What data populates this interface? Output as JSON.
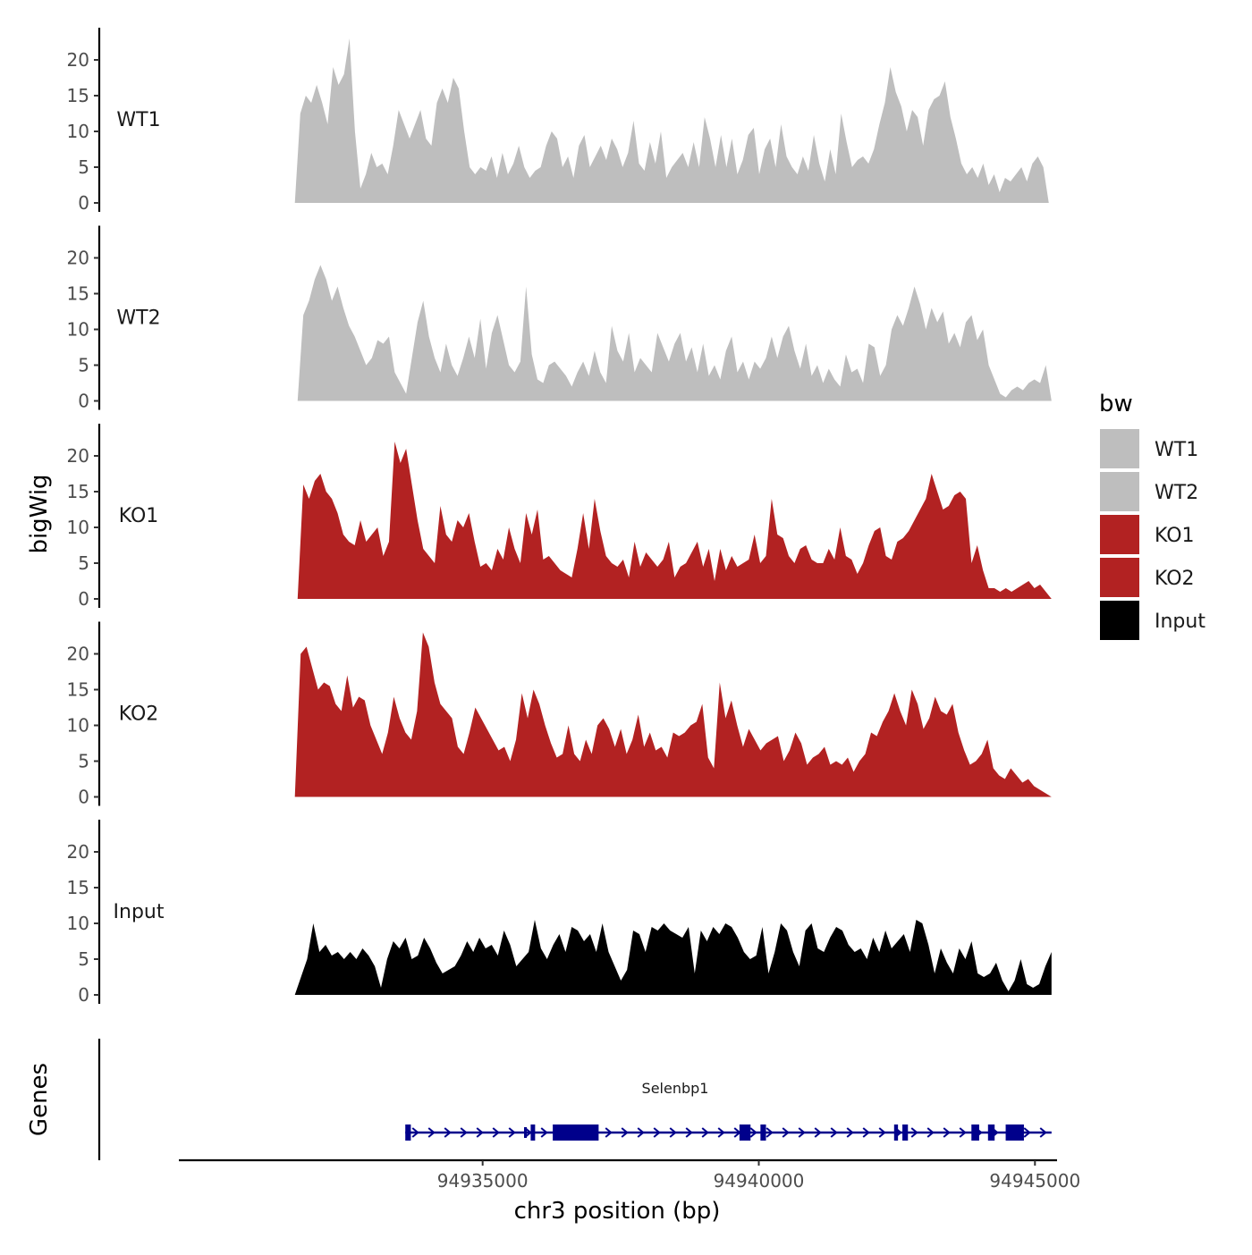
{
  "chart_data": {
    "type": "area",
    "panel_ylabel": "bigWig",
    "gene_panel_label": "Genes",
    "xlabel": "chr3 position (bp)",
    "x_ticks": [
      94935000,
      94940000,
      94945000
    ],
    "x_tick_labels": [
      "94935000",
      "94940000",
      "94945000"
    ],
    "xlim": [
      94929500,
      94945400
    ],
    "ylim": [
      0,
      24
    ],
    "y_ticks": [
      0,
      5,
      10,
      15,
      20
    ],
    "y_tick_labels": [
      "0",
      "5",
      "10",
      "15",
      "20"
    ],
    "legend": {
      "title": "bw",
      "position": "right",
      "entries": [
        {
          "label": "WT1",
          "color": "#bebebe"
        },
        {
          "label": "WT2",
          "color": "#bebebe"
        },
        {
          "label": "KO1",
          "color": "#b22222"
        },
        {
          "label": "KO2",
          "color": "#b22222"
        },
        {
          "label": "Input",
          "color": "#000000"
        }
      ]
    },
    "series": [
      {
        "name": "WT1",
        "color": "#bebebe",
        "x_start": 94931600,
        "x_end": 94945250,
        "values": [
          0,
          12.5,
          15,
          14,
          16.5,
          14,
          11,
          19,
          16.5,
          18,
          23,
          10,
          2,
          4,
          7,
          5,
          5.5,
          4,
          8,
          13,
          11,
          9,
          11,
          13,
          9,
          8,
          14,
          16,
          14,
          17.5,
          16,
          10,
          5,
          4,
          5,
          4.5,
          6.5,
          3.5,
          7,
          4,
          5.5,
          8,
          5,
          3.5,
          4.5,
          5,
          8,
          10,
          9,
          5,
          6.5,
          3.5,
          8,
          9.5,
          5,
          6.5,
          8,
          6,
          9,
          7.5,
          5,
          7,
          11.5,
          5.5,
          4.5,
          8.5,
          5.5,
          10,
          3.5,
          5,
          6,
          7,
          5,
          8.5,
          5,
          12,
          9,
          5,
          9.5,
          5,
          9,
          4,
          6,
          9.5,
          10.5,
          4,
          7.5,
          9,
          5,
          11,
          6.5,
          5,
          4,
          6.5,
          4.5,
          9.5,
          5.5,
          3,
          7.5,
          4,
          12.5,
          8.5,
          5,
          6,
          6.5,
          5.5,
          7.5,
          11,
          14,
          19,
          15.5,
          13.5,
          10,
          13,
          12,
          8,
          13,
          14.5,
          15,
          17,
          12,
          9,
          5.5,
          4,
          5,
          3.5,
          5.5,
          2.5,
          4,
          1.5,
          3.5,
          3,
          4,
          5,
          3,
          5.5,
          6.5,
          5,
          0
        ]
      },
      {
        "name": "WT2",
        "color": "#bebebe",
        "x_start": 94931650,
        "x_end": 94945300,
        "values": [
          0,
          12,
          14,
          17,
          19,
          17,
          14,
          16,
          13,
          10.5,
          9,
          7,
          5,
          6,
          8.5,
          8,
          9,
          4,
          2.5,
          1,
          6,
          11,
          14,
          9,
          6,
          4,
          8,
          5,
          3.5,
          6,
          9,
          6,
          11.5,
          4.5,
          9.5,
          12,
          8.5,
          5,
          4,
          5.5,
          16,
          6.5,
          3,
          2.5,
          5,
          5.5,
          4.5,
          3.5,
          2,
          4,
          5.5,
          3.5,
          7,
          4,
          2.5,
          10.5,
          7,
          5.5,
          9.5,
          4,
          6,
          5,
          4,
          9.5,
          7.5,
          5.5,
          8,
          9.5,
          5.5,
          7.5,
          4,
          8,
          3.5,
          5,
          3,
          7,
          9,
          4,
          5.5,
          3,
          5.5,
          4.5,
          6,
          9,
          6,
          9,
          10.5,
          7,
          4.5,
          8,
          3.5,
          5,
          2.5,
          4.5,
          3,
          2,
          6.5,
          4,
          4.5,
          2.5,
          8,
          7.5,
          3.5,
          5,
          10,
          12,
          10.5,
          13,
          16,
          13.5,
          10,
          13,
          11,
          12.5,
          8,
          9.5,
          7.5,
          11,
          12,
          8.5,
          10,
          5,
          3,
          1,
          0.5,
          1.5,
          2,
          1.5,
          2.5,
          3,
          2.5,
          5,
          0
        ]
      },
      {
        "name": "KO1",
        "color": "#b22222",
        "x_start": 94931650,
        "x_end": 94945300,
        "values": [
          0,
          16,
          14,
          16.5,
          17.5,
          15,
          14,
          12,
          9,
          8,
          7.5,
          11,
          8,
          9,
          10,
          6,
          8,
          22,
          19,
          21,
          16,
          11,
          7,
          6,
          5,
          13,
          9,
          8,
          11,
          10,
          12,
          8,
          4.5,
          5,
          4,
          7,
          5.5,
          10,
          7,
          5,
          12,
          9,
          12.5,
          5.5,
          6,
          5,
          4,
          3.5,
          3,
          7,
          12,
          7,
          14,
          9.5,
          6,
          5,
          4.5,
          5.5,
          3,
          8,
          4.5,
          6.5,
          5.5,
          4.5,
          5.5,
          8,
          3,
          4.5,
          5,
          6.5,
          8,
          4.5,
          7,
          2.5,
          7,
          4,
          6,
          4.5,
          5,
          5.5,
          9,
          5,
          6,
          14,
          9,
          8.5,
          6,
          5,
          7,
          7.5,
          5.5,
          5,
          5,
          7,
          5.5,
          10,
          6,
          5.5,
          3.5,
          5,
          7.5,
          9.5,
          10,
          6,
          5.5,
          8,
          8.5,
          9.5,
          11,
          12.5,
          14,
          17.5,
          15,
          12.5,
          13,
          14.5,
          15,
          14,
          5,
          7.5,
          4,
          1.5,
          1.5,
          1,
          1.5,
          1,
          1.5,
          2,
          2.5,
          1.5,
          2,
          1,
          0
        ]
      },
      {
        "name": "KO2",
        "color": "#b22222",
        "x_start": 94931600,
        "x_end": 94945300,
        "values": [
          0,
          20,
          21,
          18,
          15,
          16,
          15.5,
          13,
          12,
          17,
          12.5,
          14,
          13.5,
          10,
          8,
          6,
          9,
          14,
          11,
          9,
          8,
          12,
          23,
          21,
          16,
          13,
          12,
          11,
          7,
          6,
          9,
          12.5,
          11,
          9.5,
          8,
          6.5,
          7,
          5,
          8,
          14.5,
          11,
          15,
          13,
          10,
          7.5,
          5.5,
          6,
          10,
          6,
          5,
          8,
          6,
          10,
          11,
          9.5,
          7,
          9.5,
          6,
          8,
          11.5,
          7,
          9,
          6.5,
          7,
          5.5,
          9,
          8.5,
          9,
          10,
          10.5,
          13,
          5.5,
          4,
          16,
          11,
          13.5,
          10,
          7,
          9.5,
          8,
          6.5,
          7.5,
          8,
          8.5,
          5,
          6.5,
          9,
          7.5,
          4.5,
          5.5,
          6,
          7,
          4.5,
          5,
          4.5,
          5.5,
          3.5,
          5,
          6,
          9,
          8.5,
          10.5,
          12,
          14.5,
          12,
          10,
          15,
          13,
          9.5,
          11,
          14,
          12,
          11.5,
          13,
          9,
          6.5,
          4.5,
          5,
          6,
          8,
          4,
          3,
          2.5,
          4,
          3,
          2,
          2.5,
          1.5,
          1,
          0.5,
          0
        ]
      },
      {
        "name": "Input",
        "color": "#000000",
        "x_start": 94931600,
        "x_end": 94945300,
        "values": [
          0,
          2.5,
          5,
          10,
          6,
          7,
          5.5,
          6,
          5,
          6,
          5,
          6.5,
          5.5,
          4,
          1,
          5,
          7.5,
          6.5,
          8,
          5,
          5.5,
          8,
          6.5,
          4.5,
          3,
          3.5,
          4,
          5.5,
          7.5,
          6,
          8,
          6.5,
          7,
          5.5,
          9,
          7,
          4,
          5,
          6,
          10.5,
          6.5,
          5,
          7,
          8.5,
          6,
          9.5,
          9,
          7.5,
          8.5,
          6,
          10,
          6,
          4,
          2,
          3.5,
          9,
          8.5,
          6,
          9.5,
          9,
          10,
          9,
          8.5,
          8,
          9.5,
          3,
          9,
          7.5,
          9.5,
          8.5,
          10,
          9.5,
          8,
          6,
          5,
          5.5,
          9.5,
          3,
          6,
          10,
          9,
          6,
          4,
          9,
          10,
          6.5,
          6,
          8,
          9.5,
          9,
          7,
          6,
          6.5,
          5,
          8,
          6,
          9,
          6.5,
          7.5,
          8.5,
          6,
          10.5,
          10,
          7,
          3,
          6.5,
          4.5,
          3,
          6.5,
          5,
          7.5,
          3,
          2.5,
          3,
          4.5,
          2,
          0.5,
          2,
          5,
          1.5,
          1,
          1.5,
          4,
          6
        ]
      }
    ],
    "gene": {
      "name": "Selenbp1",
      "strand": "+",
      "start": 94933600,
      "end": 94945300,
      "color": "#00008b",
      "exons": [
        {
          "start": 94933600,
          "end": 94933700,
          "thick": true
        },
        {
          "start": 94935750,
          "end": 94935800,
          "thick": false
        },
        {
          "start": 94935870,
          "end": 94935950,
          "thick": true
        },
        {
          "start": 94936270,
          "end": 94937100,
          "thick": true
        },
        {
          "start": 94939650,
          "end": 94939850,
          "thick": true
        },
        {
          "start": 94940030,
          "end": 94940130,
          "thick": true
        },
        {
          "start": 94942450,
          "end": 94942520,
          "thick": true
        },
        {
          "start": 94942600,
          "end": 94942700,
          "thick": true
        },
        {
          "start": 94943850,
          "end": 94943990,
          "thick": true
        },
        {
          "start": 94944150,
          "end": 94944270,
          "thick": true
        },
        {
          "start": 94944470,
          "end": 94944800,
          "thick": true
        }
      ]
    }
  }
}
